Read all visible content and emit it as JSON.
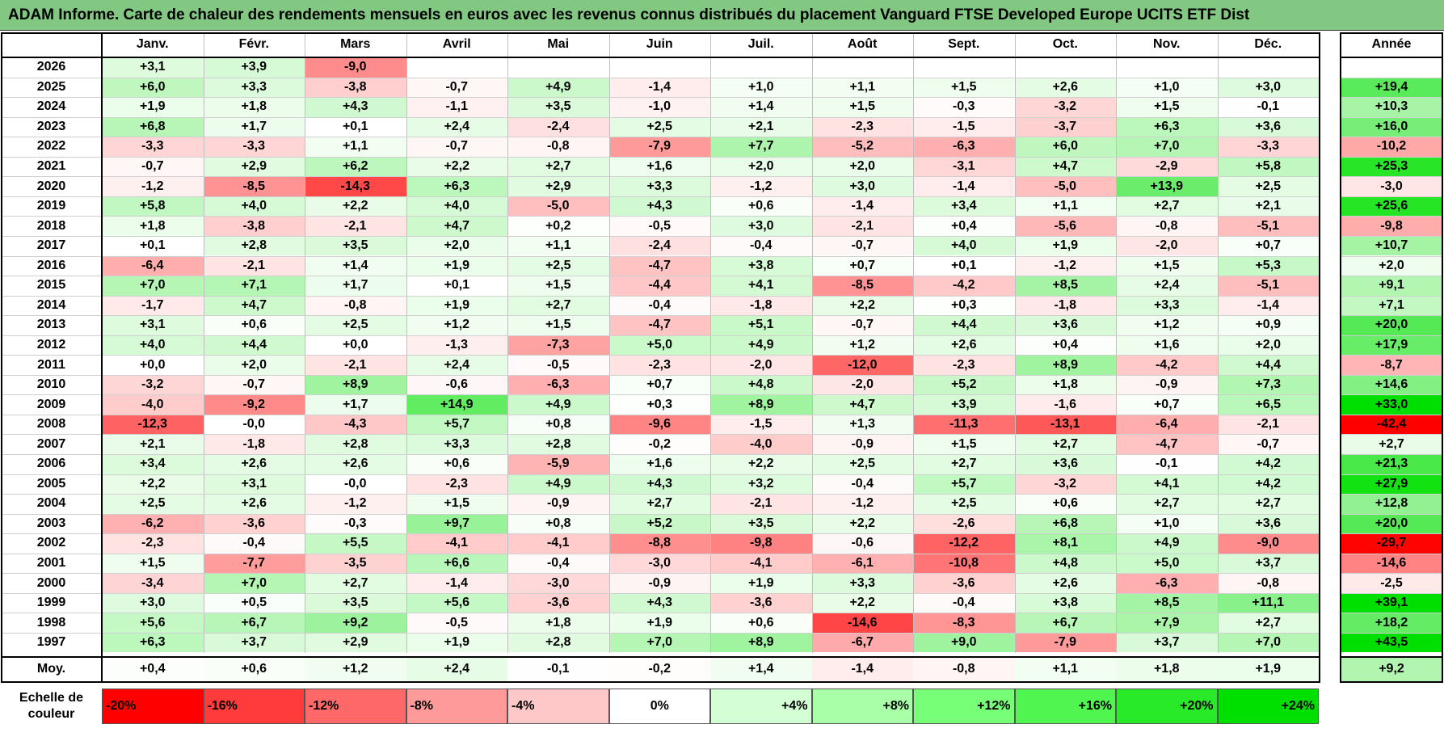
{
  "title": "ADAM Informe. Carte de chaleur des rendements mensuels en euros avec les revenus connus distribués du placement Vanguard FTSE Developed Europe UCITS ETF Dist",
  "chart_data": {
    "type": "heatmap",
    "months": [
      "Janv.",
      "Févr.",
      "Mars",
      "Avril",
      "Mai",
      "Juin",
      "Juil.",
      "Août",
      "Sept.",
      "Oct.",
      "Nov.",
      "Déc."
    ],
    "year_header": "Année",
    "rows": [
      {
        "year": "2026",
        "values": [
          "+3,1",
          "+3,9",
          "-9,0",
          "",
          "",
          "",
          "",
          "",
          "",
          "",
          "",
          ""
        ],
        "annual": ""
      },
      {
        "year": "2025",
        "values": [
          "+6,0",
          "+3,3",
          "-3,8",
          "-0,7",
          "+4,9",
          "-1,4",
          "+1,0",
          "+1,1",
          "+1,5",
          "+2,6",
          "+1,0",
          "+3,0"
        ],
        "annual": "+19,4"
      },
      {
        "year": "2024",
        "values": [
          "+1,9",
          "+1,8",
          "+4,3",
          "-1,1",
          "+3,5",
          "-1,0",
          "+1,4",
          "+1,5",
          "-0,3",
          "-3,2",
          "+1,5",
          "-0,1"
        ],
        "annual": "+10,3"
      },
      {
        "year": "2023",
        "values": [
          "+6,8",
          "+1,7",
          "+0,1",
          "+2,4",
          "-2,4",
          "+2,5",
          "+2,1",
          "-2,3",
          "-1,5",
          "-3,7",
          "+6,3",
          "+3,6"
        ],
        "annual": "+16,0"
      },
      {
        "year": "2022",
        "values": [
          "-3,3",
          "-3,3",
          "+1,1",
          "-0,7",
          "-0,8",
          "-7,9",
          "+7,7",
          "-5,2",
          "-6,3",
          "+6,0",
          "+7,0",
          "-3,3"
        ],
        "annual": "-10,2"
      },
      {
        "year": "2021",
        "values": [
          "-0,7",
          "+2,9",
          "+6,2",
          "+2,2",
          "+2,7",
          "+1,6",
          "+2,0",
          "+2,0",
          "-3,1",
          "+4,7",
          "-2,9",
          "+5,8"
        ],
        "annual": "+25,3"
      },
      {
        "year": "2020",
        "values": [
          "-1,2",
          "-8,5",
          "-14,3",
          "+6,3",
          "+2,9",
          "+3,3",
          "-1,2",
          "+3,0",
          "-1,4",
          "-5,0",
          "+13,9",
          "+2,5"
        ],
        "annual": "-3,0"
      },
      {
        "year": "2019",
        "values": [
          "+5,8",
          "+4,0",
          "+2,2",
          "+4,0",
          "-5,0",
          "+4,3",
          "+0,6",
          "-1,4",
          "+3,4",
          "+1,1",
          "+2,7",
          "+2,1"
        ],
        "annual": "+25,6"
      },
      {
        "year": "2018",
        "values": [
          "+1,8",
          "-3,8",
          "-2,1",
          "+4,7",
          "+0,2",
          "-0,5",
          "+3,0",
          "-2,1",
          "+0,4",
          "-5,6",
          "-0,8",
          "-5,1"
        ],
        "annual": "-9,8"
      },
      {
        "year": "2017",
        "values": [
          "+0,1",
          "+2,8",
          "+3,5",
          "+2,0",
          "+1,1",
          "-2,4",
          "-0,4",
          "-0,7",
          "+4,0",
          "+1,9",
          "-2,0",
          "+0,7"
        ],
        "annual": "+10,7"
      },
      {
        "year": "2016",
        "values": [
          "-6,4",
          "-2,1",
          "+1,4",
          "+1,9",
          "+2,5",
          "-4,7",
          "+3,8",
          "+0,7",
          "+0,1",
          "-1,2",
          "+1,5",
          "+5,3"
        ],
        "annual": "+2,0"
      },
      {
        "year": "2015",
        "values": [
          "+7,0",
          "+7,1",
          "+1,7",
          "+0,1",
          "+1,5",
          "-4,4",
          "+4,1",
          "-8,5",
          "-4,2",
          "+8,5",
          "+2,4",
          "-5,1"
        ],
        "annual": "+9,1"
      },
      {
        "year": "2014",
        "values": [
          "-1,7",
          "+4,7",
          "-0,8",
          "+1,9",
          "+2,7",
          "-0,4",
          "-1,8",
          "+2,2",
          "+0,3",
          "-1,8",
          "+3,3",
          "-1,4"
        ],
        "annual": "+7,1"
      },
      {
        "year": "2013",
        "values": [
          "+3,1",
          "+0,6",
          "+2,5",
          "+1,2",
          "+1,5",
          "-4,7",
          "+5,1",
          "-0,7",
          "+4,4",
          "+3,6",
          "+1,2",
          "+0,9"
        ],
        "annual": "+20,0"
      },
      {
        "year": "2012",
        "values": [
          "+4,0",
          "+4,4",
          "+0,0",
          "-1,3",
          "-7,3",
          "+5,0",
          "+4,9",
          "+1,2",
          "+2,6",
          "+0,4",
          "+1,6",
          "+2,0"
        ],
        "annual": "+17,9"
      },
      {
        "year": "2011",
        "values": [
          "+0,0",
          "+2,0",
          "-2,1",
          "+2,4",
          "-0,5",
          "-2,3",
          "-2,0",
          "-12,0",
          "-2,3",
          "+8,9",
          "-4,2",
          "+4,4"
        ],
        "annual": "-8,7"
      },
      {
        "year": "2010",
        "values": [
          "-3,2",
          "-0,7",
          "+8,9",
          "-0,6",
          "-6,3",
          "+0,7",
          "+4,8",
          "-2,0",
          "+5,2",
          "+1,8",
          "-0,9",
          "+7,3"
        ],
        "annual": "+14,6"
      },
      {
        "year": "2009",
        "values": [
          "-4,0",
          "-9,2",
          "+1,7",
          "+14,9",
          "+4,9",
          "+0,3",
          "+8,9",
          "+4,7",
          "+3,9",
          "-1,6",
          "+0,7",
          "+6,5"
        ],
        "annual": "+33,0"
      },
      {
        "year": "2008",
        "values": [
          "-12,3",
          "-0,0",
          "-4,3",
          "+5,7",
          "+0,8",
          "-9,6",
          "-1,5",
          "+1,3",
          "-11,3",
          "-13,1",
          "-6,4",
          "-2,1"
        ],
        "annual": "-42,4"
      },
      {
        "year": "2007",
        "values": [
          "+2,1",
          "-1,8",
          "+2,8",
          "+3,3",
          "+2,8",
          "-0,2",
          "-4,0",
          "-0,9",
          "+1,5",
          "+2,7",
          "-4,7",
          "-0,7"
        ],
        "annual": "+2,7"
      },
      {
        "year": "2006",
        "values": [
          "+3,4",
          "+2,6",
          "+2,6",
          "+0,6",
          "-5,9",
          "+1,6",
          "+2,2",
          "+2,5",
          "+2,7",
          "+3,6",
          "-0,1",
          "+4,2"
        ],
        "annual": "+21,3"
      },
      {
        "year": "2005",
        "values": [
          "+2,2",
          "+3,1",
          "-0,0",
          "-2,3",
          "+4,9",
          "+4,3",
          "+3,2",
          "-0,4",
          "+5,7",
          "-3,2",
          "+4,1",
          "+4,2"
        ],
        "annual": "+27,9"
      },
      {
        "year": "2004",
        "values": [
          "+2,5",
          "+2,6",
          "-1,2",
          "+1,5",
          "-0,9",
          "+2,7",
          "-2,1",
          "-1,2",
          "+2,5",
          "+0,6",
          "+2,7",
          "+2,7"
        ],
        "annual": "+12,8"
      },
      {
        "year": "2003",
        "values": [
          "-6,2",
          "-3,6",
          "-0,3",
          "+9,7",
          "+0,8",
          "+5,2",
          "+3,5",
          "+2,2",
          "-2,6",
          "+6,8",
          "+1,0",
          "+3,6"
        ],
        "annual": "+20,0"
      },
      {
        "year": "2002",
        "values": [
          "-2,3",
          "-0,4",
          "+5,5",
          "-4,1",
          "-4,1",
          "-8,8",
          "-9,8",
          "-0,6",
          "-12,2",
          "+8,1",
          "+4,9",
          "-9,0"
        ],
        "annual": "-29,7"
      },
      {
        "year": "2001",
        "values": [
          "+1,5",
          "-7,7",
          "-3,5",
          "+6,6",
          "-0,4",
          "-3,0",
          "-4,1",
          "-6,1",
          "-10,8",
          "+4,8",
          "+5,0",
          "+3,7"
        ],
        "annual": "-14,6"
      },
      {
        "year": "2000",
        "values": [
          "-3,4",
          "+7,0",
          "+2,7",
          "-1,4",
          "-3,0",
          "-0,9",
          "+1,9",
          "+3,3",
          "-3,6",
          "+2,6",
          "-6,3",
          "-0,8"
        ],
        "annual": "-2,5"
      },
      {
        "year": "1999",
        "values": [
          "+3,0",
          "+0,5",
          "+3,5",
          "+5,6",
          "-3,6",
          "+4,3",
          "-3,6",
          "+2,2",
          "-0,4",
          "+3,8",
          "+8,5",
          "+11,1"
        ],
        "annual": "+39,1"
      },
      {
        "year": "1998",
        "values": [
          "+5,6",
          "+6,7",
          "+9,2",
          "-0,5",
          "+1,8",
          "+1,9",
          "+0,6",
          "-14,6",
          "-8,3",
          "+6,7",
          "+7,9",
          "+2,7"
        ],
        "annual": "+18,2"
      },
      {
        "year": "1997",
        "values": [
          "+6,3",
          "+3,7",
          "+2,9",
          "+1,9",
          "+2,8",
          "+7,0",
          "+8,9",
          "-6,7",
          "+9,0",
          "-7,9",
          "+3,7",
          "+7,0"
        ],
        "annual": "+43,5"
      }
    ],
    "average": {
      "label": "Moy.",
      "values": [
        "+0,4",
        "+0,6",
        "+1,2",
        "+2,4",
        "-0,1",
        "-0,2",
        "+1,4",
        "-1,4",
        "-0,8",
        "+1,1",
        "+1,8",
        "+1,9"
      ],
      "annual": "+9,2"
    },
    "scale": {
      "label_line1": "Echelle de",
      "label_line2": "couleur",
      "steps": [
        {
          "label": "-20%",
          "value": -20,
          "color": "#ff0000"
        },
        {
          "label": "-16%",
          "value": -16,
          "color": "#ff3b3b"
        },
        {
          "label": "-12%",
          "value": -12,
          "color": "#ff6868"
        },
        {
          "label": "-8%",
          "value": -8,
          "color": "#ff9a9a"
        },
        {
          "label": "-4%",
          "value": -4,
          "color": "#ffc8c8"
        },
        {
          "label": "0%",
          "value": 0,
          "color": "#ffffff"
        },
        {
          "label": "+4%",
          "value": 4,
          "color": "#d4ffd4"
        },
        {
          "label": "+8%",
          "value": 8,
          "color": "#a8ffa8"
        },
        {
          "label": "+12%",
          "value": 12,
          "color": "#78ff78"
        },
        {
          "label": "+16%",
          "value": 16,
          "color": "#50f550"
        },
        {
          "label": "+20%",
          "value": 20,
          "color": "#28ea28"
        },
        {
          "label": "+24%",
          "value": 24,
          "color": "#00e000"
        }
      ]
    }
  }
}
